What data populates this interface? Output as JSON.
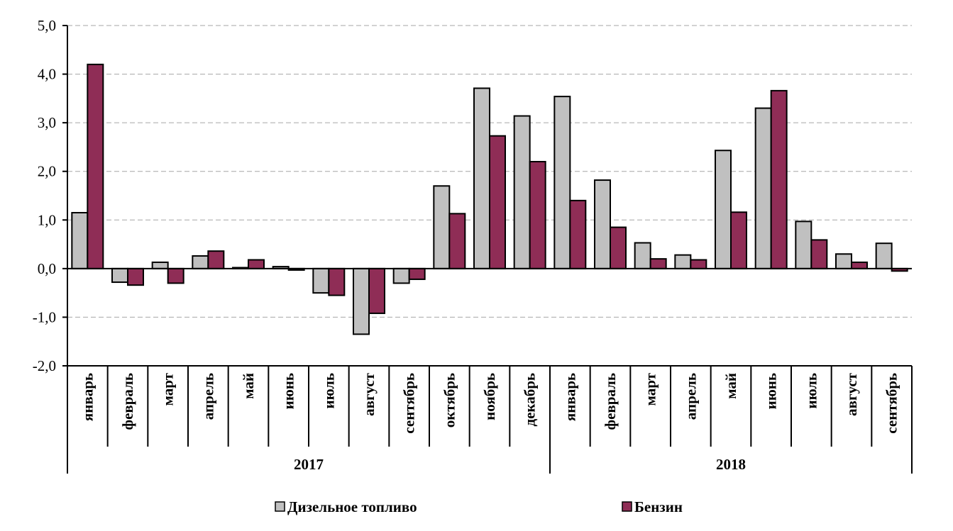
{
  "chart_data": {
    "type": "bar",
    "title": "",
    "xlabel": "",
    "ylabel": "",
    "ylim": [
      -2,
      5
    ],
    "yticks": [
      "5,0",
      "4,0",
      "3,0",
      "2,0",
      "1,0",
      "0,0",
      "-1,0",
      "-2,0"
    ],
    "ytick_values": [
      5,
      4,
      3,
      2,
      1,
      0,
      -1,
      -2
    ],
    "grid": true,
    "legend_position": "bottom",
    "categories": [
      "январь",
      "февраль",
      "март",
      "апрель",
      "май",
      "июнь",
      "июль",
      "август",
      "сентябрь",
      "октябрь",
      "ноябрь",
      "декабрь",
      "январь",
      "февраль",
      "март",
      "апрель",
      "май",
      "июнь",
      "июль",
      "август",
      "сентябрь"
    ],
    "groups": [
      {
        "label": "2017",
        "count": 12
      },
      {
        "label": "2018",
        "count": 9
      }
    ],
    "series": [
      {
        "name": "Дизельное топливо",
        "color": "#c0c0c0",
        "values": [
          1.15,
          -0.28,
          0.13,
          0.26,
          0.02,
          0.04,
          -0.5,
          -1.35,
          -0.3,
          1.7,
          3.71,
          3.14,
          3.54,
          1.82,
          0.53,
          0.28,
          2.43,
          3.3,
          0.97,
          0.3,
          0.52
        ]
      },
      {
        "name": "Бензин",
        "color": "#8f2d56",
        "values": [
          4.2,
          -0.34,
          -0.3,
          0.36,
          0.18,
          -0.03,
          -0.55,
          -0.92,
          -0.22,
          1.13,
          2.73,
          2.2,
          1.4,
          0.85,
          0.2,
          0.18,
          1.16,
          3.66,
          0.59,
          0.13,
          -0.05
        ]
      }
    ]
  }
}
